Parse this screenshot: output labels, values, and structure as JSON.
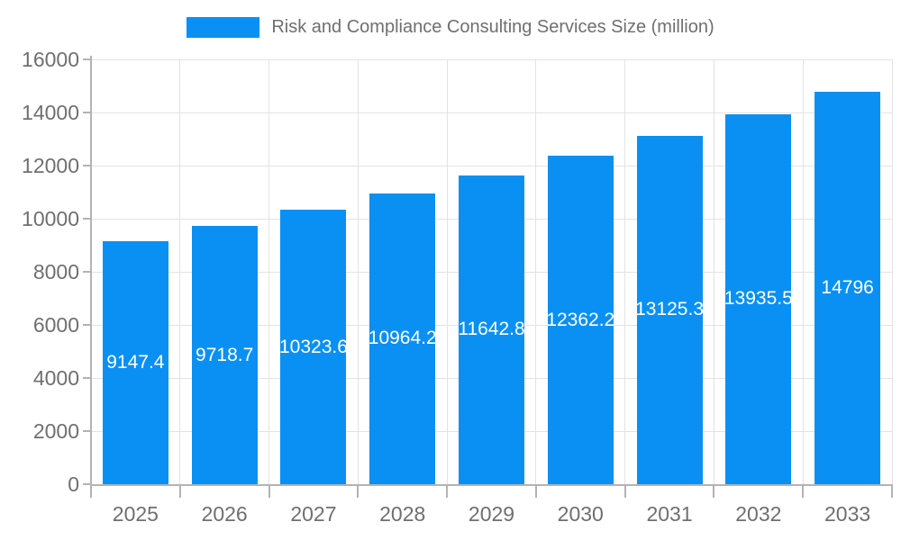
{
  "chart_data": {
    "type": "bar",
    "title": "Risk and Compliance Consulting Services Size (million)",
    "legend_position": "top",
    "categories": [
      "2025",
      "2026",
      "2027",
      "2028",
      "2029",
      "2030",
      "2031",
      "2032",
      "2033"
    ],
    "values": [
      9147.4,
      9718.7,
      10323.6,
      10964.2,
      11642.8,
      12362.2,
      13125.3,
      13935.5,
      14796
    ],
    "bar_labels": [
      "9147.4",
      "9718.7",
      "10323.6",
      "10964.2",
      "11642.8",
      "12362.2",
      "13125.3",
      "13935.5",
      "14796"
    ],
    "xlabel": "",
    "ylabel": "",
    "ylim": [
      0,
      16000
    ],
    "yticks": [
      0,
      2000,
      4000,
      6000,
      8000,
      10000,
      12000,
      14000,
      16000
    ],
    "grid": true,
    "colors": {
      "bar": "#0a90f2",
      "bar_label": "#ffffff",
      "axis_text": "#6f6f6f",
      "grid_line": "#e3e3e3",
      "axis_line": "#b3b3b3",
      "background": "#ffffff"
    }
  }
}
